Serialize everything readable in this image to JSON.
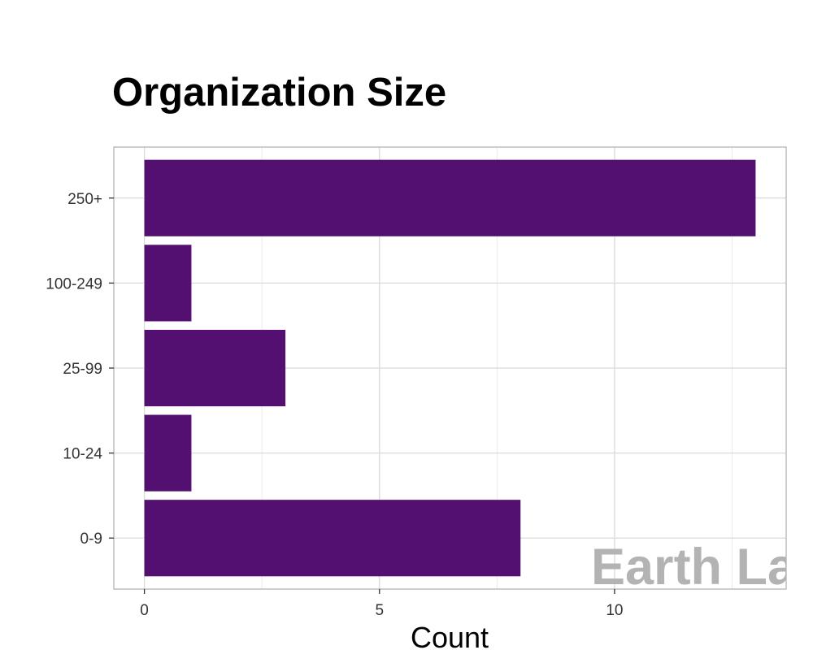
{
  "chart_data": {
    "type": "bar",
    "orientation": "horizontal",
    "title": "Organization Size",
    "xlabel": "Count",
    "ylabel": "",
    "categories": [
      "0-9",
      "10-24",
      "25-99",
      "100-249",
      "250+"
    ],
    "values": [
      8,
      1,
      3,
      1,
      13
    ],
    "xlim": [
      -0.65,
      13.65
    ],
    "xticks": [
      0,
      5,
      10
    ],
    "grid": true,
    "legend": "none",
    "bar_color": "#541070",
    "watermark": "Earth La"
  }
}
